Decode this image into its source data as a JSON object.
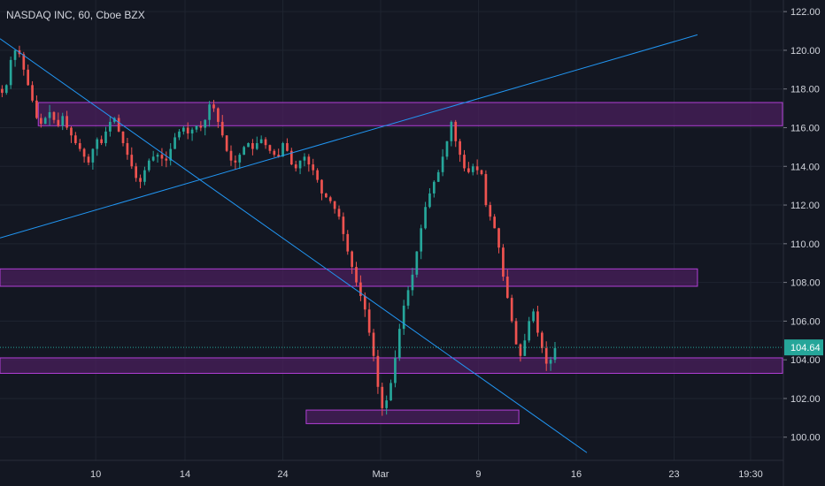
{
  "header": {
    "title": "NASDAQ INC, 60, Cboe BZX"
  },
  "colors": {
    "background": "#131722",
    "grid": "#1f2430",
    "up": "#26a69a",
    "down": "#ef5350",
    "trendline": "#2196f3",
    "zone_fill": "#4a1f5c",
    "zone_border": "#b23fd6",
    "axis_text": "#d1d4dc",
    "last_price_bg": "#26a69a"
  },
  "chart_data": {
    "type": "candlestick",
    "title": "NASDAQ INC, 60, Cboe BZX",
    "ylim": [
      98.8,
      122.6
    ],
    "y_ticks": [
      "100.00",
      "102.00",
      "104.00",
      "106.00",
      "108.00",
      "110.00",
      "112.00",
      "114.00",
      "116.00",
      "118.00",
      "120.00",
      "122.00"
    ],
    "x_ticks": [
      {
        "label": "10",
        "idx": 22
      },
      {
        "label": "14",
        "idx": 43
      },
      {
        "label": "24",
        "idx": 66
      },
      {
        "label": "Mar",
        "idx": 89
      },
      {
        "label": "9",
        "idx": 112
      },
      {
        "label": "16",
        "idx": 135
      },
      {
        "label": "23",
        "idx": 158
      },
      {
        "label": "19:30",
        "idx": 176
      }
    ],
    "bar_count": 184,
    "last_price": "104.64",
    "last_price_value": 104.64,
    "closes": [
      117.8,
      118.2,
      119.5,
      120.0,
      119.8,
      119.0,
      118.2,
      117.4,
      116.5,
      116.2,
      116.5,
      116.8,
      116.4,
      116.1,
      116.6,
      116.0,
      115.6,
      115.2,
      114.9,
      114.5,
      114.2,
      114.9,
      115.4,
      115.2,
      115.8,
      116.3,
      116.5,
      115.8,
      115.2,
      114.6,
      114.0,
      113.4,
      113.2,
      113.8,
      114.3,
      114.5,
      114.6,
      114.4,
      114.3,
      114.9,
      115.5,
      115.8,
      116.0,
      115.7,
      115.9,
      116.1,
      116.0,
      116.4,
      117.2,
      117.0,
      116.3,
      115.6,
      114.8,
      114.3,
      114.2,
      114.6,
      115.0,
      115.2,
      114.9,
      115.2,
      115.4,
      115.1,
      114.8,
      114.6,
      114.5,
      115.2,
      114.8,
      114.1,
      113.9,
      114.3,
      114.5,
      114.1,
      113.8,
      113.3,
      112.6,
      112.4,
      112.2,
      111.8,
      111.4,
      110.5,
      109.6,
      108.8,
      108.0,
      107.3,
      106.6,
      105.4,
      104.2,
      102.6,
      101.5,
      101.9,
      102.8,
      104.1,
      105.6,
      106.8,
      107.6,
      108.4,
      109.6,
      110.8,
      111.9,
      112.6,
      113.2,
      113.7,
      114.5,
      115.3,
      116.3,
      115.3,
      114.6,
      113.9,
      113.7,
      114.0,
      113.8,
      113.6,
      112.0,
      111.4,
      110.8,
      109.8,
      108.3,
      107.2,
      106.0,
      104.8,
      104.2,
      105.0,
      106.0,
      106.5,
      105.4,
      104.6,
      103.8,
      104.0,
      104.6
    ],
    "volatility": 0.4,
    "zones": [
      {
        "from": 116.1,
        "to": 117.3,
        "x_start_idx": 9,
        "x_end_idx": 184
      },
      {
        "from": 107.8,
        "to": 108.7,
        "x_start_idx": 0,
        "x_end_idx": 164
      },
      {
        "from": 103.3,
        "to": 104.1,
        "x_start_idx": 0,
        "x_end_idx": 184
      },
      {
        "from": 100.7,
        "to": 101.4,
        "x_start_idx": 72,
        "x_end_idx": 122
      }
    ],
    "trendlines": [
      {
        "x1_idx": 0,
        "y1": 110.3,
        "x2_idx": 164,
        "y2": 120.8
      },
      {
        "x1_idx": 0,
        "y1": 120.6,
        "x2_idx": 138,
        "y2": 99.2
      }
    ]
  }
}
